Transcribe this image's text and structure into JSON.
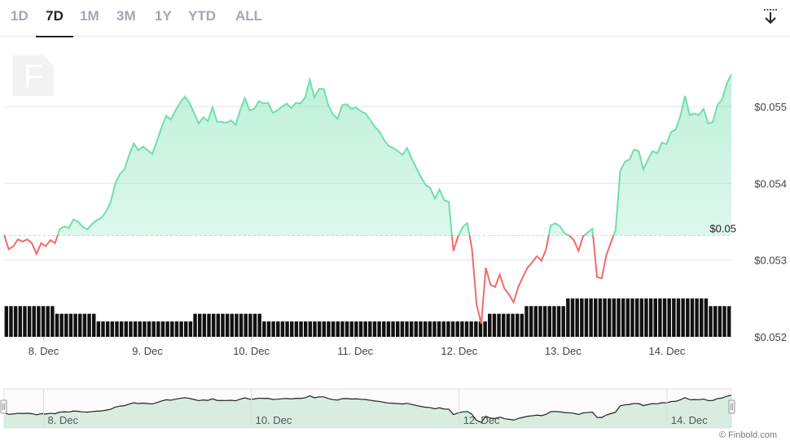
{
  "tabs": [
    "1D",
    "7D",
    "1M",
    "3M",
    "1Y",
    "YTD",
    "ALL"
  ],
  "active_tab": "7D",
  "logo_letter": "F",
  "credit": "© Finbold.com",
  "colors": {
    "up": "#6fdfac",
    "down": "#ef6b6b",
    "fill": "#d5f6e6",
    "volume": "#111111",
    "nav_fill": "#cfe8da"
  },
  "chart_data": {
    "type": "line",
    "title": "",
    "xlabel": "",
    "ylabel": "",
    "baseline": {
      "value": 0.05332,
      "label": "$0.05"
    },
    "x_ticks": [
      "8. Dec",
      "9. Dec",
      "10. Dec",
      "11. Dec",
      "12. Dec",
      "13. Dec",
      "14. Dec"
    ],
    "y_ticks": [
      "$0.055",
      "$0.054",
      "$0.053",
      "$0.052"
    ],
    "y_tick_values": [
      0.055,
      0.054,
      0.053,
      0.052
    ],
    "ylim": [
      0.052,
      0.0557
    ],
    "xlim_days": [
      7.62,
      14.62
    ],
    "series": [
      {
        "values": [
          0.05333,
          0.05314,
          0.05318,
          0.05327,
          0.05324,
          0.05327,
          0.05322,
          0.05308,
          0.05322,
          0.05318,
          0.05326,
          0.05322,
          0.0534,
          0.05344,
          0.05342,
          0.05353,
          0.0535,
          0.05343,
          0.0534,
          0.05347,
          0.05352,
          0.05355,
          0.05363,
          0.05375,
          0.054,
          0.05412,
          0.05418,
          0.05437,
          0.05452,
          0.05443,
          0.05448,
          0.05443,
          0.05438,
          0.05455,
          0.05473,
          0.05488,
          0.05483,
          0.05495,
          0.05505,
          0.05513,
          0.05505,
          0.05492,
          0.05478,
          0.05486,
          0.05481,
          0.05499,
          0.0548,
          0.0548,
          0.05479,
          0.05482,
          0.05476,
          0.05496,
          0.05511,
          0.05495,
          0.05497,
          0.05507,
          0.05504,
          0.05505,
          0.05492,
          0.05495,
          0.055,
          0.05504,
          0.05498,
          0.05505,
          0.05504,
          0.05512,
          0.05535,
          0.05512,
          0.05523,
          0.05523,
          0.05502,
          0.0549,
          0.05484,
          0.05502,
          0.05503,
          0.05497,
          0.05499,
          0.05494,
          0.05491,
          0.05483,
          0.05474,
          0.05468,
          0.05457,
          0.05449,
          0.05446,
          0.05442,
          0.05437,
          0.05446,
          0.05432,
          0.0542,
          0.05408,
          0.05398,
          0.05394,
          0.0538,
          0.05392,
          0.05378,
          0.05376,
          0.05312,
          0.05331,
          0.05343,
          0.05348,
          0.05315,
          0.05242,
          0.05217,
          0.0529,
          0.05268,
          0.05265,
          0.05281,
          0.05263,
          0.05255,
          0.05245,
          0.05265,
          0.05278,
          0.0529,
          0.05297,
          0.05305,
          0.05299,
          0.05314,
          0.05345,
          0.05348,
          0.05344,
          0.05335,
          0.05332,
          0.05326,
          0.05312,
          0.05331,
          0.05336,
          0.05341,
          0.05278,
          0.05276,
          0.05306,
          0.05323,
          0.05339,
          0.05416,
          0.05428,
          0.05431,
          0.05444,
          0.05442,
          0.05418,
          0.05431,
          0.05442,
          0.05439,
          0.05453,
          0.05451,
          0.05467,
          0.0547,
          0.05488,
          0.05514,
          0.05489,
          0.05491,
          0.05489,
          0.05497,
          0.05478,
          0.0548,
          0.05502,
          0.05509,
          0.0553,
          0.05542
        ]
      }
    ],
    "volume": [
      0.0524,
      0.0524,
      0.0524,
      0.0524,
      0.0524,
      0.0524,
      0.0524,
      0.0524,
      0.0524,
      0.0524,
      0.0524,
      0.0523,
      0.0523,
      0.0523,
      0.0523,
      0.0523,
      0.0523,
      0.0523,
      0.0523,
      0.0523,
      0.0522,
      0.0522,
      0.0522,
      0.0522,
      0.0522,
      0.0522,
      0.0522,
      0.0522,
      0.0522,
      0.0522,
      0.0522,
      0.0522,
      0.0522,
      0.0522,
      0.0522,
      0.0522,
      0.0522,
      0.0522,
      0.0522,
      0.0522,
      0.0522,
      0.0523,
      0.0523,
      0.0523,
      0.0523,
      0.0523,
      0.0523,
      0.0523,
      0.0523,
      0.0523,
      0.0523,
      0.0523,
      0.0523,
      0.0523,
      0.0523,
      0.0523,
      0.0522,
      0.0522,
      0.0522,
      0.0522,
      0.0522,
      0.0522,
      0.0522,
      0.0522,
      0.0522,
      0.0522,
      0.0522,
      0.0522,
      0.0522,
      0.0522,
      0.0522,
      0.0522,
      0.0522,
      0.0522,
      0.0522,
      0.0522,
      0.0522,
      0.0522,
      0.0522,
      0.0522,
      0.0522,
      0.0522,
      0.0522,
      0.0522,
      0.0522,
      0.0522,
      0.0522,
      0.0522,
      0.0522,
      0.0522,
      0.0522,
      0.0522,
      0.0522,
      0.0522,
      0.0522,
      0.0522,
      0.0522,
      0.0522,
      0.0522,
      0.0522,
      0.0522,
      0.0522,
      0.0522,
      0.0522,
      0.0522,
      0.0523,
      0.0523,
      0.0523,
      0.0523,
      0.0523,
      0.0523,
      0.0523,
      0.0523,
      0.0524,
      0.0524,
      0.0524,
      0.0524,
      0.0524,
      0.0524,
      0.0524,
      0.0524,
      0.0524,
      0.0525,
      0.0525,
      0.0525,
      0.0525,
      0.0525,
      0.0525,
      0.0525,
      0.0525,
      0.0525,
      0.0525,
      0.0525,
      0.0525,
      0.0525,
      0.0525,
      0.0525,
      0.0525,
      0.0525,
      0.0525,
      0.0525,
      0.0525,
      0.0525,
      0.0525,
      0.0525,
      0.0525,
      0.0525,
      0.0525,
      0.0525,
      0.0525,
      0.0525,
      0.0525,
      0.0525,
      0.0524,
      0.0524,
      0.0524,
      0.0524,
      0.0524
    ],
    "navigator_x_ticks": [
      "8. Dec",
      "10. Dec",
      "12. Dec",
      "14. Dec"
    ]
  }
}
